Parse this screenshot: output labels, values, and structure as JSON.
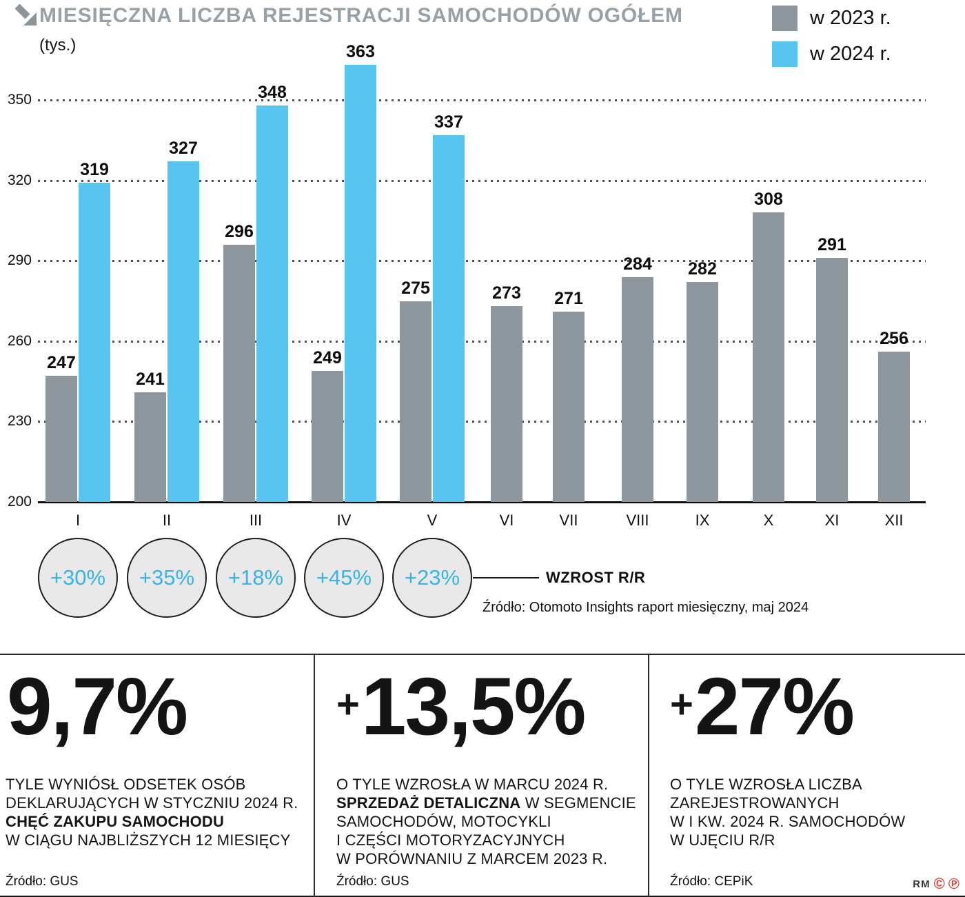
{
  "header": {
    "title": "MIESIĘCZNA LICZBA REJESTRACJI SAMOCHODÓW OGÓŁEM",
    "unit": "(tys.)"
  },
  "legend": [
    {
      "label": "w 2023 r.",
      "color": "#8e979d"
    },
    {
      "label": "w 2024 r.",
      "color": "#58c4f0"
    }
  ],
  "chart_data": {
    "type": "bar",
    "title": "MIESIĘCZNA LICZBA REJESTRACJI SAMOCHODÓW OGÓŁEM (tys.)",
    "categories": [
      "I",
      "II",
      "III",
      "IV",
      "V",
      "VI",
      "VII",
      "VIII",
      "IX",
      "X",
      "XI",
      "XII"
    ],
    "series": [
      {
        "name": "w 2023 r.",
        "color": "#8e979d",
        "values": [
          247,
          241,
          296,
          249,
          275,
          273,
          271,
          284,
          282,
          308,
          291,
          256
        ]
      },
      {
        "name": "w 2024 r.",
        "color": "#58c4f0",
        "values": [
          319,
          327,
          348,
          363,
          337,
          null,
          null,
          null,
          null,
          null,
          null,
          null
        ]
      }
    ],
    "ylim": [
      200,
      368
    ],
    "yticks": [
      200,
      230,
      260,
      290,
      320,
      350
    ],
    "grid": "dotted-horizontal",
    "legend_position": "top-right"
  },
  "growth": {
    "badges": [
      "+30%",
      "+35%",
      "+18%",
      "+45%",
      "+23%"
    ],
    "caption": "WZROST R/R",
    "color": "#38b4e6"
  },
  "chart_source": "Źródło: Otomoto Insights raport miesięczny, maj 2024",
  "stats": [
    {
      "prefix": "",
      "value": "9,7%",
      "description": [
        [
          {
            "t": "TYLE WYNIÓSŁ ODSETEK OSÓB",
            "b": 0
          }
        ],
        [
          {
            "t": "DEKLARUJĄCYCH W STYCZNIU 2024 R.",
            "b": 0
          }
        ],
        [
          {
            "t": "CHĘĆ ZAKUPU SAMOCHODU",
            "b": 1
          }
        ],
        [
          {
            "t": "W CIĄGU NAJBLIŻSZYCH 12 MIESIĘCY",
            "b": 0
          }
        ]
      ],
      "source": "Źródło: GUS"
    },
    {
      "prefix": "+",
      "value": "13,5%",
      "description": [
        [
          {
            "t": "O TYLE WZROSŁA W MARCU 2024 R.",
            "b": 0
          }
        ],
        [
          {
            "t": "SPRZEDAŻ DETALICZNA",
            "b": 1
          },
          {
            "t": " W SEGMENCIE",
            "b": 0
          }
        ],
        [
          {
            "t": "SAMOCHODÓW, MOTOCYKLI",
            "b": 0
          }
        ],
        [
          {
            "t": "I CZĘŚCI MOTORYZACYJNYCH",
            "b": 0
          }
        ],
        [
          {
            "t": "W PORÓWNANIU Z MARCEM 2023 R.",
            "b": 0
          }
        ]
      ],
      "source": "Źródło: GUS"
    },
    {
      "prefix": "+",
      "value": "27%",
      "description": [
        [
          {
            "t": "O TYLE WZROSŁA LICZBA",
            "b": 0
          }
        ],
        [
          {
            "t": "ZAREJESTROWANYCH",
            "b": 0
          }
        ],
        [
          {
            "t": "W I KW. 2024 R. SAMOCHODÓW",
            "b": 0
          }
        ],
        [
          {
            "t": "W UJĘCIU R/R",
            "b": 0
          }
        ]
      ],
      "source": "Źródło: CEPiK"
    }
  ],
  "footer": {
    "credit": "RM",
    "copyright": "©",
    "phonogram": "℗"
  }
}
